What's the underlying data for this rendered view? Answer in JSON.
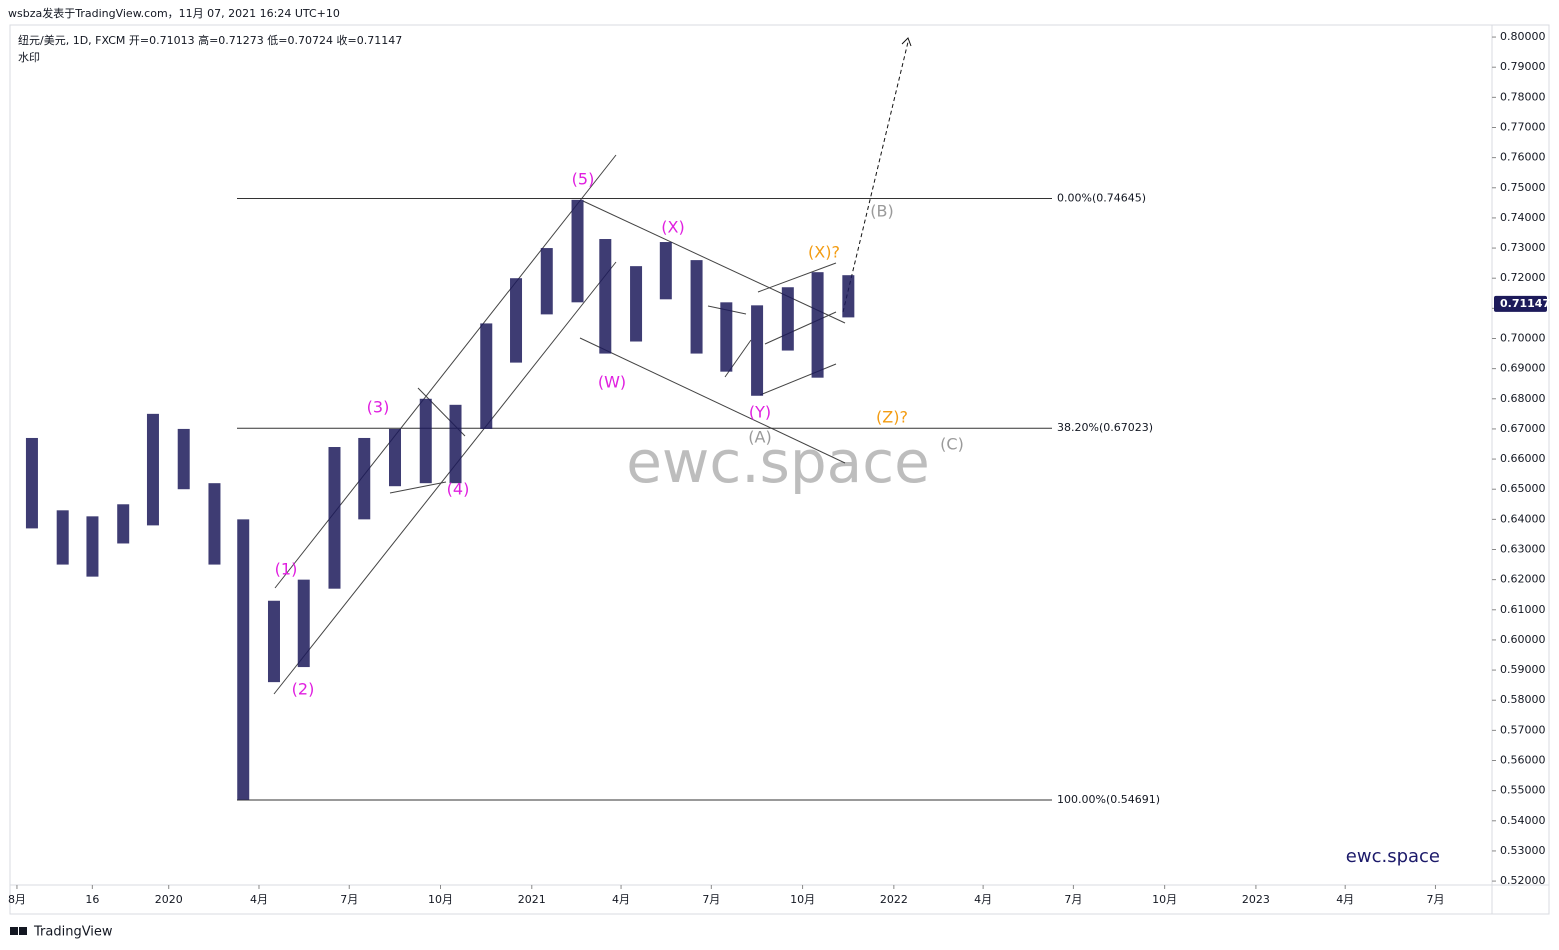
{
  "header": "wsbza发表于TradingView.com，11月 07, 2021 16:24 UTC+10",
  "footer": "TradingView",
  "chart_data": {
    "type": "range-bar",
    "title": "纽元/美元, 1D, FXCM  开=0.71013  高=0.71273  低=0.70724  收=0.71147",
    "subtitle": "水印",
    "watermark": "ewc.space",
    "brand": "ewc.space",
    "color": "#1c1a5a",
    "last_price": {
      "value": 0.71147,
      "label": "0.71147"
    },
    "x": [
      "2019-08",
      "2019-09",
      "2019-10",
      "2019-11",
      "2019-12",
      "2020-01",
      "2020-02",
      "2020-03",
      "2020-04",
      "2020-05",
      "2020-06",
      "2020-07",
      "2020-08",
      "2020-09",
      "2020-10",
      "2020-11",
      "2020-12",
      "2021-01",
      "2021-02",
      "2021-03",
      "2021-04",
      "2021-05",
      "2021-06",
      "2021-07",
      "2021-08",
      "2021-09",
      "2021-10",
      "2021-11"
    ],
    "high": [
      0.667,
      0.643,
      0.641,
      0.645,
      0.675,
      0.67,
      0.652,
      0.64,
      0.613,
      0.62,
      0.664,
      0.667,
      0.67,
      0.68,
      0.678,
      0.705,
      0.72,
      0.73,
      0.746,
      0.733,
      0.724,
      0.732,
      0.726,
      0.712,
      0.711,
      0.717,
      0.722,
      0.721
    ],
    "low": [
      0.637,
      0.625,
      0.621,
      0.632,
      0.638,
      0.65,
      0.625,
      0.547,
      0.586,
      0.591,
      0.617,
      0.64,
      0.651,
      0.652,
      0.652,
      0.67,
      0.692,
      0.708,
      0.712,
      0.695,
      0.699,
      0.713,
      0.695,
      0.689,
      0.681,
      0.696,
      0.687,
      0.707
    ],
    "fib_levels": [
      {
        "value": 0.74645,
        "label": "0.00%(0.74645)"
      },
      {
        "value": 0.67023,
        "label": "38.20%(0.67023)"
      },
      {
        "value": 0.54691,
        "label": "100.00%(0.54691)"
      }
    ],
    "annotations": [
      "(1)",
      "(2)",
      "(3)",
      "(4)",
      "(5)",
      "(W)",
      "(X)",
      "(Y)",
      "(A)",
      "(X)?",
      "(Z)?",
      "(B)",
      "(C)"
    ],
    "xlim": [
      "2019-07-25",
      "2023-08-27"
    ],
    "xticks": [
      {
        "value": "2019-08-01",
        "label": "8月"
      },
      {
        "value": "2019-10-16",
        "label": "16"
      },
      {
        "value": "2020-01-01",
        "label": "2020"
      },
      {
        "value": "2020-04-01",
        "label": "4月"
      },
      {
        "value": "2020-07-01",
        "label": "7月"
      },
      {
        "value": "2020-10-01",
        "label": "10月"
      },
      {
        "value": "2021-01-01",
        "label": "2021"
      },
      {
        "value": "2021-04-01",
        "label": "4月"
      },
      {
        "value": "2021-07-01",
        "label": "7月"
      },
      {
        "value": "2021-10-01",
        "label": "10月"
      },
      {
        "value": "2022-01-01",
        "label": "2022"
      },
      {
        "value": "2022-04-01",
        "label": "4月"
      },
      {
        "value": "2022-07-01",
        "label": "7月"
      },
      {
        "value": "2022-10-01",
        "label": "10月"
      },
      {
        "value": "2023-01-01",
        "label": "2023"
      },
      {
        "value": "2023-04-01",
        "label": "4月"
      },
      {
        "value": "2023-07-01",
        "label": "7月"
      }
    ],
    "ylim": [
      0.5187,
      0.804
    ],
    "yticks": [
      {
        "value": 0.52,
        "label": "0.52000"
      },
      {
        "value": 0.53,
        "label": "0.53000"
      },
      {
        "value": 0.54,
        "label": "0.54000"
      },
      {
        "value": 0.55,
        "label": "0.55000"
      },
      {
        "value": 0.56,
        "label": "0.56000"
      },
      {
        "value": 0.57,
        "label": "0.57000"
      },
      {
        "value": 0.58,
        "label": "0.58000"
      },
      {
        "value": 0.59,
        "label": "0.59000"
      },
      {
        "value": 0.6,
        "label": "0.60000"
      },
      {
        "value": 0.61,
        "label": "0.61000"
      },
      {
        "value": 0.62,
        "label": "0.62000"
      },
      {
        "value": 0.63,
        "label": "0.63000"
      },
      {
        "value": 0.64,
        "label": "0.64000"
      },
      {
        "value": 0.65,
        "label": "0.65000"
      },
      {
        "value": 0.66,
        "label": "0.66000"
      },
      {
        "value": 0.67,
        "label": "0.67000"
      },
      {
        "value": 0.68,
        "label": "0.68000"
      },
      {
        "value": 0.69,
        "label": "0.69000"
      },
      {
        "value": 0.7,
        "label": "0.70000"
      },
      {
        "value": 0.71,
        "label": "0.71000"
      },
      {
        "value": 0.72,
        "label": "0.72000"
      },
      {
        "value": 0.73,
        "label": "0.73000"
      },
      {
        "value": 0.74,
        "label": "0.74000"
      },
      {
        "value": 0.75,
        "label": "0.75000"
      },
      {
        "value": 0.76,
        "label": "0.76000"
      },
      {
        "value": 0.77,
        "label": "0.77000"
      },
      {
        "value": 0.78,
        "label": "0.78000"
      },
      {
        "value": 0.79,
        "label": "0.79000"
      },
      {
        "value": 0.8,
        "label": "0.80000"
      }
    ]
  }
}
